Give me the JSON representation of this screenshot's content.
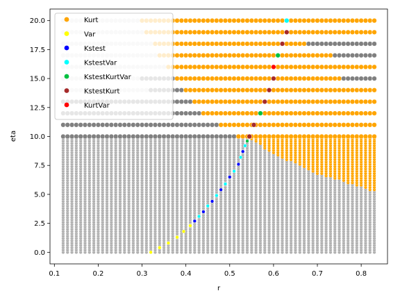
{
  "chart_data": {
    "type": "scatter",
    "xlabel": "r",
    "ylabel": "eta",
    "xlim": [
      0.09,
      0.86
    ],
    "ylim": [
      -1.0,
      21.0
    ],
    "xticks": [
      "0.1",
      "0.2",
      "0.3",
      "0.4",
      "0.5",
      "0.6",
      "0.7",
      "0.8"
    ],
    "yticks": [
      "0.0",
      "2.5",
      "5.0",
      "7.5",
      "10.0",
      "12.5",
      "15.0",
      "17.5",
      "20.0"
    ],
    "grid": false,
    "legend": {
      "placement": "top-left"
    },
    "colors": {
      "background_sweep_low": "#b0b0b0",
      "background_sweep_high": "#e0e0e0",
      "no_detection": "#808080",
      "Kurt": "#ffa500",
      "Var": "#ffff00",
      "Kstest": "#0000ff",
      "KstestVar": "#00ffff",
      "KstestKurtVar": "#00c040",
      "KstestKurt": "#a52a2a",
      "KurtVar": "#ff0000"
    },
    "series": [
      {
        "name": "Kurt",
        "color": "#ffa500"
      },
      {
        "name": "Var",
        "color": "#ffff00"
      },
      {
        "name": "Kstest",
        "color": "#0000ff"
      },
      {
        "name": "KstestVar",
        "color": "#00ffff"
      },
      {
        "name": "KstestKurtVar",
        "color": "#00c040"
      },
      {
        "name": "KstestKurt",
        "color": "#a52a2a"
      },
      {
        "name": "KurtVar",
        "color": "#ff0000"
      }
    ],
    "grid_r_range": [
      0.12,
      0.835
    ],
    "grid_r_step": 0.01,
    "upper_eta_values": [
      10,
      11,
      12,
      13,
      14,
      15,
      16,
      17,
      18,
      19,
      20
    ],
    "kurt_onset_r_by_eta": {
      "10": 0.52,
      "11": 0.475,
      "12": 0.44,
      "13": 0.415,
      "14": 0.395,
      "15": 0.38,
      "16": 0.36,
      "17": 0.34,
      "18": 0.325,
      "19": 0.31,
      "20": 0.295
    },
    "kurt_end_r_by_eta": {
      "10": 0.835,
      "11": 0.835,
      "12": 0.835,
      "13": 0.835,
      "14": 0.835,
      "15": 0.76,
      "16": 0.835,
      "17": 0.74,
      "18": 0.68,
      "19": 0.835,
      "20": 0.835
    },
    "highlight_points": [
      {
        "r": 0.63,
        "eta": 20,
        "label": "KstestVar"
      },
      {
        "r": 0.63,
        "eta": 19,
        "label": "KstestKurt"
      },
      {
        "r": 0.62,
        "eta": 18,
        "label": "KstestKurt"
      },
      {
        "r": 0.61,
        "eta": 17,
        "label": "KstestKurtVar"
      },
      {
        "r": 0.6,
        "eta": 16,
        "label": "KurtVar"
      },
      {
        "r": 0.6,
        "eta": 15,
        "label": "KstestKurt"
      },
      {
        "r": 0.59,
        "eta": 14,
        "label": "KstestKurt"
      },
      {
        "r": 0.58,
        "eta": 13,
        "label": "KstestKurt"
      },
      {
        "r": 0.57,
        "eta": 12,
        "label": "KstestKurtVar"
      },
      {
        "r": 0.555,
        "eta": 11,
        "label": "KstestKurt"
      },
      {
        "r": 0.545,
        "eta": 10,
        "label": "KstestKurt"
      }
    ],
    "lower_kurt_boundary": [
      {
        "r": 0.54,
        "eta": 10.0
      },
      {
        "r": 0.6,
        "eta": 8.5
      },
      {
        "r": 0.7,
        "eta": 6.8
      },
      {
        "r": 0.835,
        "eta": 5.2
      }
    ],
    "detection_curve": [
      {
        "r": 0.32,
        "eta": 0.0,
        "label": "Var"
      },
      {
        "r": 0.34,
        "eta": 0.4,
        "label": "Var"
      },
      {
        "r": 0.36,
        "eta": 0.8,
        "label": "Var"
      },
      {
        "r": 0.38,
        "eta": 1.3,
        "label": "Var"
      },
      {
        "r": 0.395,
        "eta": 1.8,
        "label": "Var"
      },
      {
        "r": 0.41,
        "eta": 2.3,
        "label": "Var"
      },
      {
        "r": 0.42,
        "eta": 2.7,
        "label": "Kstest"
      },
      {
        "r": 0.43,
        "eta": 3.1,
        "label": "KstestVar"
      },
      {
        "r": 0.44,
        "eta": 3.5,
        "label": "Kstest"
      },
      {
        "r": 0.45,
        "eta": 4.0,
        "label": "KstestVar"
      },
      {
        "r": 0.46,
        "eta": 4.4,
        "label": "Kstest"
      },
      {
        "r": 0.47,
        "eta": 4.9,
        "label": "KstestVar"
      },
      {
        "r": 0.48,
        "eta": 5.4,
        "label": "Kstest"
      },
      {
        "r": 0.49,
        "eta": 5.9,
        "label": "KstestVar"
      },
      {
        "r": 0.5,
        "eta": 6.5,
        "label": "Kstest"
      },
      {
        "r": 0.51,
        "eta": 7.0,
        "label": "KstestVar"
      },
      {
        "r": 0.52,
        "eta": 7.6,
        "label": "Kstest"
      },
      {
        "r": 0.525,
        "eta": 8.2,
        "label": "KstestVar"
      },
      {
        "r": 0.53,
        "eta": 8.7,
        "label": "Kstest"
      },
      {
        "r": 0.535,
        "eta": 9.2,
        "label": "KstestVar"
      },
      {
        "r": 0.54,
        "eta": 9.6,
        "label": "KstestKurtVar"
      }
    ]
  }
}
